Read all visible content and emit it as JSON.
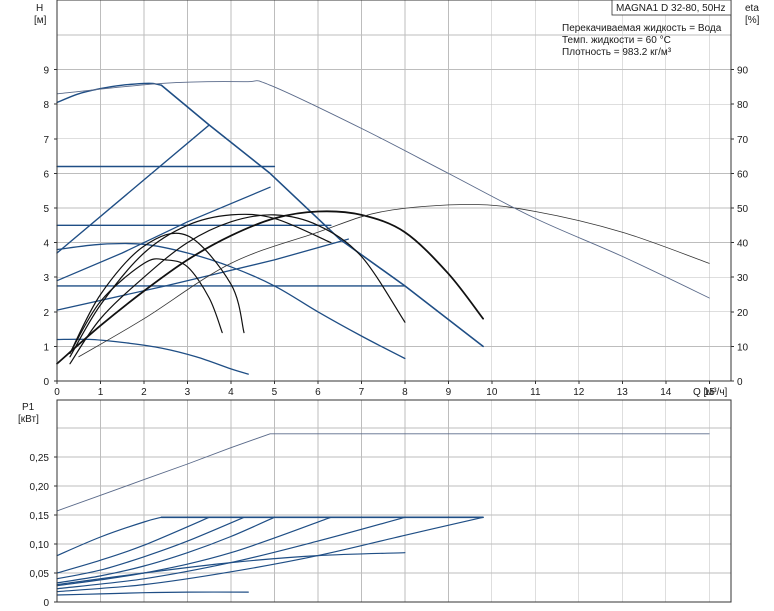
{
  "chart_data": [
    {
      "type": "line",
      "title": "MAGNA1 D 32-80, 50Hz",
      "annotations": [
        "Перекачиваемая жидкость = Вода",
        "Темп. жидкости = 60 °C",
        "Плотность = 983.2 кг/м³"
      ],
      "xlabel": "Q [м³/ч]",
      "ylabel_left": "H",
      "ylabel_left_unit": "[м]",
      "ylabel_right": "eta",
      "ylabel_right_unit": "[%]",
      "xlim": [
        0,
        15.5
      ],
      "ylim": [
        0,
        10
      ],
      "ylim_right": [
        0,
        100
      ],
      "grid": true,
      "x_ticks": [
        "0",
        "1",
        "2",
        "3",
        "4",
        "5",
        "6",
        "7",
        "8",
        "9",
        "10",
        "11",
        "12",
        "13",
        "14",
        "15"
      ],
      "y_ticks": [
        "0",
        "1",
        "2",
        "3",
        "4",
        "5",
        "6",
        "7",
        "8",
        "9"
      ],
      "y_right_ticks": [
        "0",
        "10",
        "20",
        "30",
        "40",
        "50",
        "60",
        "70",
        "80",
        "90"
      ],
      "colors": {
        "head": "#1f4e85",
        "eta": "#111111",
        "thin": "#5a6a8a",
        "grid": "#bdbdbd"
      },
      "series": [
        {
          "role": "max-head",
          "x": [
            0,
            0.5,
            1,
            1.5,
            2,
            2.2,
            2.4
          ],
          "y": [
            8.05,
            8.3,
            8.45,
            8.55,
            8.6,
            8.6,
            8.55
          ]
        },
        {
          "role": "prop-pressure-limit",
          "x": [
            2.4,
            3.5,
            4.9,
            6.5,
            8.0,
            9.8
          ],
          "y": [
            8.55,
            7.4,
            6.0,
            4.1,
            2.75,
            1.0
          ]
        },
        {
          "role": "prop-pressure-top",
          "x": [
            0,
            3.5
          ],
          "y": [
            3.7,
            7.4
          ]
        },
        {
          "role": "const-pressure",
          "x": [
            0,
            5.0
          ],
          "y": [
            6.2,
            6.2
          ]
        },
        {
          "role": "const-pressure",
          "x": [
            0,
            6.3
          ],
          "y": [
            4.5,
            4.5
          ]
        },
        {
          "role": "const-pressure",
          "x": [
            0,
            8.0
          ],
          "y": [
            2.75,
            2.75
          ]
        },
        {
          "role": "prop-pressure",
          "x": [
            0,
            1.5,
            3.0,
            4.9
          ],
          "y": [
            2.9,
            3.7,
            4.6,
            5.6
          ]
        },
        {
          "role": "prop-pressure",
          "x": [
            0,
            2.5,
            5.0,
            6.7
          ],
          "y": [
            2.05,
            2.75,
            3.5,
            4.1
          ]
        },
        {
          "role": "min-curve",
          "x": [
            0,
            1.0,
            2.0,
            3.0,
            4.0,
            5.0,
            6.0,
            7.0,
            8.0
          ],
          "y": [
            3.8,
            3.95,
            3.95,
            3.7,
            3.3,
            2.75,
            2.0,
            1.3,
            0.65
          ]
        },
        {
          "role": "min-curve",
          "x": [
            0,
            0.8,
            1.6,
            2.4,
            3.2,
            4.0,
            4.4
          ],
          "y": [
            1.2,
            1.2,
            1.1,
            0.95,
            0.7,
            0.35,
            0.2
          ]
        },
        {
          "role": "eta-max",
          "x": [
            0,
            1,
            2,
            3,
            4,
            5,
            6,
            7,
            8,
            9,
            9.8
          ],
          "y": [
            5,
            16,
            26,
            35,
            42,
            47,
            49,
            48,
            43,
            31,
            18
          ]
        },
        {
          "role": "eta",
          "x": [
            0.3,
            1,
            2,
            3,
            4,
            5,
            6,
            7,
            8
          ],
          "y": [
            5,
            18,
            30,
            40,
            46,
            48,
            45,
            36,
            17
          ]
        },
        {
          "role": "eta",
          "x": [
            0.3,
            1,
            2,
            3,
            4,
            5,
            6.3
          ],
          "y": [
            7,
            22,
            37,
            45,
            48,
            47,
            40
          ]
        },
        {
          "role": "eta",
          "x": [
            0.3,
            1,
            2,
            3,
            4,
            4.3
          ],
          "y": [
            8,
            25,
            39,
            42,
            28,
            14
          ]
        },
        {
          "role": "eta",
          "x": [
            0.3,
            1,
            2,
            2.5,
            3,
            3.5,
            3.8
          ],
          "y": [
            8,
            23,
            34,
            35,
            33,
            24,
            14
          ]
        },
        {
          "role": "eta-extended",
          "x": [
            0.5,
            2,
            4,
            6,
            7.5,
            9.5,
            11,
            13,
            15
          ],
          "y": [
            7,
            18,
            34,
            43,
            49,
            51,
            49,
            43,
            34
          ]
        },
        {
          "role": "thin-max-head",
          "x": [
            0,
            2.4,
            4.3,
            4.9,
            7,
            9,
            11,
            13,
            15
          ],
          "y": [
            8.3,
            8.6,
            8.65,
            8.55,
            7.3,
            6.0,
            4.7,
            3.6,
            2.4
          ]
        }
      ]
    },
    {
      "type": "line",
      "xlabel": "",
      "ylabel": "P1",
      "ylabel_unit": "[кВт]",
      "xlim": [
        0,
        15.5
      ],
      "ylim": [
        0,
        0.3
      ],
      "grid": true,
      "y_ticks": [
        "0",
        "0,05",
        "0,10",
        "0,15",
        "0,20",
        "0,25"
      ],
      "series": [
        {
          "role": "power-max",
          "x": [
            0,
            1,
            2,
            3,
            4,
            4.9,
            15
          ],
          "y": [
            0.157,
            0.184,
            0.211,
            0.238,
            0.266,
            0.29,
            0.29
          ]
        },
        {
          "role": "power-limit",
          "x": [
            2.4,
            9.8
          ],
          "y": [
            0.146,
            0.146
          ]
        },
        {
          "role": "power",
          "x": [
            0,
            1,
            2,
            2.4
          ],
          "y": [
            0.08,
            0.112,
            0.138,
            0.146
          ]
        },
        {
          "role": "power",
          "x": [
            0,
            1,
            2,
            3.5
          ],
          "y": [
            0.05,
            0.072,
            0.098,
            0.146
          ]
        },
        {
          "role": "power",
          "x": [
            0,
            1,
            2,
            3,
            4.3
          ],
          "y": [
            0.04,
            0.055,
            0.078,
            0.105,
            0.146
          ]
        },
        {
          "role": "power",
          "x": [
            0,
            1,
            2,
            3,
            4,
            5.0
          ],
          "y": [
            0.033,
            0.045,
            0.062,
            0.085,
            0.113,
            0.146
          ]
        },
        {
          "role": "power",
          "x": [
            0,
            2,
            4,
            6.3
          ],
          "y": [
            0.028,
            0.05,
            0.085,
            0.146
          ]
        },
        {
          "role": "power",
          "x": [
            0,
            2,
            4,
            6,
            8
          ],
          "y": [
            0.023,
            0.04,
            0.068,
            0.105,
            0.146
          ]
        },
        {
          "role": "power",
          "x": [
            0,
            2,
            4,
            6,
            8,
            9.8
          ],
          "y": [
            0.018,
            0.03,
            0.052,
            0.08,
            0.115,
            0.146
          ]
        },
        {
          "role": "power",
          "x": [
            0,
            2,
            4,
            6,
            8
          ],
          "y": [
            0.03,
            0.05,
            0.068,
            0.08,
            0.085
          ]
        },
        {
          "role": "power",
          "x": [
            0,
            1,
            2,
            3,
            4.4
          ],
          "y": [
            0.012,
            0.014,
            0.016,
            0.017,
            0.017
          ]
        }
      ]
    }
  ]
}
